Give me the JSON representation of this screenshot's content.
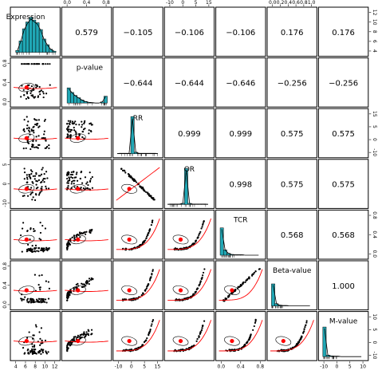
{
  "chart_data": {
    "type": "scatter",
    "chart_kind": "pairs-panels matrix",
    "variables": [
      "Expression",
      "p-value",
      "RR",
      "OR",
      "TCR",
      "Beta-value",
      "M-value"
    ],
    "correlations": [
      [
        "",
        "0.579",
        "−0.105",
        "−0.106",
        "−0.106",
        "0.176",
        "0.176"
      ],
      [
        "",
        "",
        "−0.644",
        "−0.644",
        "−0.646",
        "−0.256",
        "−0.256"
      ],
      [
        "",
        "",
        "",
        "0.999",
        "0.999",
        "0.575",
        "0.575"
      ],
      [
        "",
        "",
        "",
        "",
        "0.998",
        "0.575",
        "0.575"
      ],
      [
        "",
        "",
        "",
        "",
        "",
        "0.568",
        "0.568"
      ],
      [
        "",
        "",
        "",
        "",
        "",
        "",
        "1.000"
      ],
      [
        "",
        "",
        "",
        "",
        "",
        "",
        ""
      ]
    ],
    "axes": {
      "bottom": [
        {
          "col": 0,
          "ticks": [
            "4",
            "6",
            "8",
            "10",
            "12"
          ]
        },
        {
          "col": 2,
          "ticks": [
            "-10",
            "0",
            "5",
            "15"
          ]
        },
        {
          "col": 4,
          "ticks": [
            "0.0",
            "0.4",
            "0.8"
          ]
        },
        {
          "col": 6,
          "ticks": [
            "-10",
            "0",
            "5",
            "10"
          ]
        }
      ],
      "top": [
        {
          "col": 1,
          "ticks": [
            "0.0",
            "0.4",
            "0.8"
          ]
        },
        {
          "col": 3,
          "ticks": [
            "-10",
            "0",
            "5",
            "15"
          ]
        },
        {
          "col": 5,
          "ticks": [
            "0.0",
            "0.2",
            "0.4",
            "0.6",
            "0.8",
            "1.0"
          ]
        }
      ],
      "left": [
        {
          "row": 1,
          "ticks": [
            "0.0",
            "0.4",
            "0.8"
          ]
        },
        {
          "row": 3,
          "ticks": [
            "-10",
            "0",
            "5"
          ]
        },
        {
          "row": 5,
          "ticks": [
            "0.0",
            "0.4",
            "0.8"
          ]
        }
      ],
      "right": [
        {
          "row": 0,
          "ticks": [
            "4",
            "6",
            "8",
            "10",
            "12"
          ]
        },
        {
          "row": 2,
          "ticks": [
            "-10",
            "0",
            "5",
            "15"
          ]
        },
        {
          "row": 4,
          "ticks": [
            "0.0",
            "0.4",
            "0.8"
          ]
        },
        {
          "row": 6,
          "ticks": [
            "-10",
            "0",
            "5",
            "10"
          ]
        }
      ]
    },
    "histogram_color": "#20a7b5",
    "density_color": "#000000",
    "point_color": "#000000",
    "smooth_color": "#ff0000",
    "grid": false
  }
}
